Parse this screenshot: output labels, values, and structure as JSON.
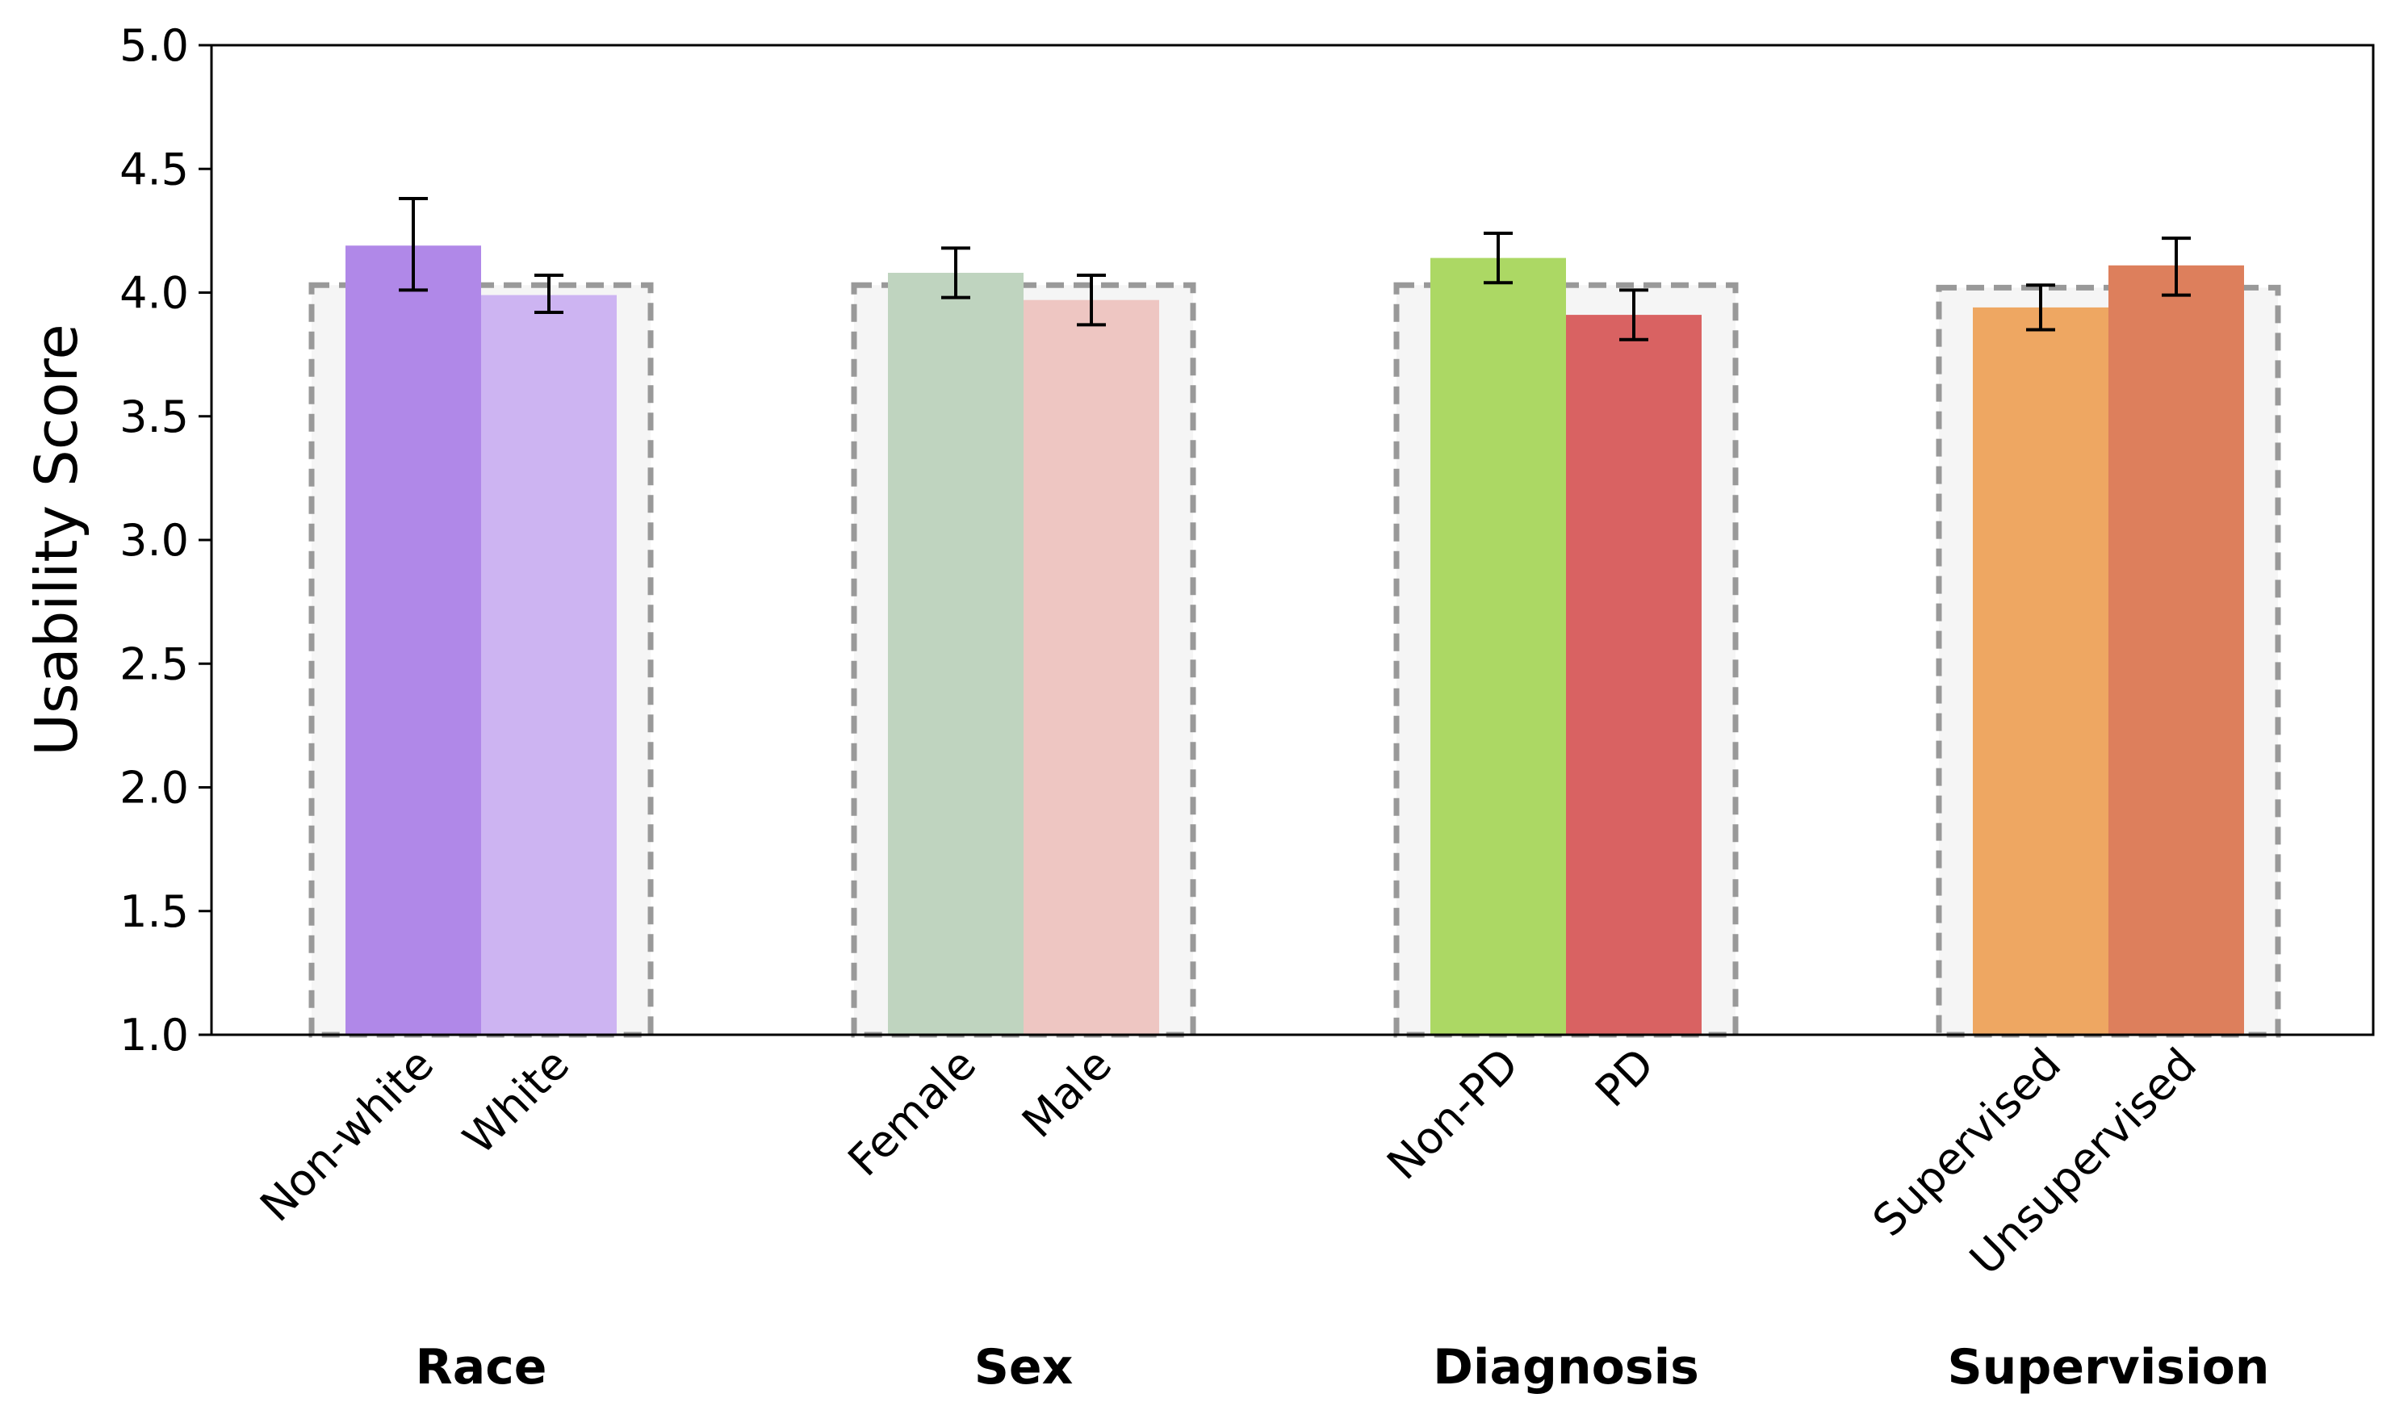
{
  "chart_data": {
    "type": "bar",
    "title": "",
    "xlabel": "",
    "ylabel": "Usability Score",
    "ylim": [
      1.0,
      5.0
    ],
    "yticks": [
      1.0,
      1.5,
      2.0,
      2.5,
      3.0,
      3.5,
      4.0,
      4.5,
      5.0
    ],
    "ytick_labels": [
      "1.0",
      "1.5",
      "2.0",
      "2.5",
      "3.0",
      "3.5",
      "4.0",
      "4.5",
      "5.0"
    ],
    "grid": false,
    "legend": "none",
    "groups": [
      {
        "name": "Race",
        "overall": 4.03,
        "bars": [
          {
            "label": "Non-white",
            "value": 4.19,
            "err_low": 4.01,
            "err_high": 4.38,
            "color": "#b088e8"
          },
          {
            "label": "White",
            "value": 3.99,
            "err_low": 3.92,
            "err_high": 4.07,
            "color": "#cdb4f2"
          }
        ]
      },
      {
        "name": "Sex",
        "overall": 4.03,
        "bars": [
          {
            "label": "Female",
            "value": 4.08,
            "err_low": 3.98,
            "err_high": 4.18,
            "color": "#bfd4bf"
          },
          {
            "label": "Male",
            "value": 3.97,
            "err_low": 3.87,
            "err_high": 4.07,
            "color": "#eec6c2"
          }
        ]
      },
      {
        "name": "Diagnosis",
        "overall": 4.03,
        "bars": [
          {
            "label": "Non-PD",
            "value": 4.14,
            "err_low": 4.04,
            "err_high": 4.24,
            "color": "#acd864"
          },
          {
            "label": "PD",
            "value": 3.91,
            "err_low": 3.81,
            "err_high": 4.01,
            "color": "#d96262"
          }
        ]
      },
      {
        "name": "Supervision",
        "overall": 4.02,
        "bars": [
          {
            "label": "Supervised",
            "value": 3.94,
            "err_low": 3.85,
            "err_high": 4.03,
            "color": "#eea762"
          },
          {
            "label": "Unsupervised",
            "value": 4.11,
            "err_low": 3.99,
            "err_high": 4.22,
            "color": "#dd7f5c"
          }
        ]
      }
    ]
  }
}
